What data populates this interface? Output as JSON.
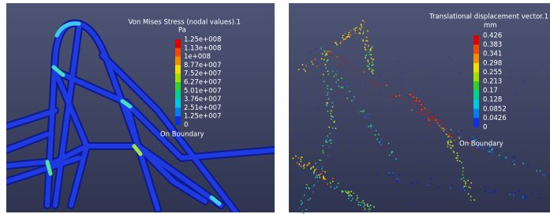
{
  "panels": [
    {
      "legend": {
        "title": "Von Mises Stress (nodal values).1",
        "unit": "Pa",
        "labels": [
          "1.25e+008",
          "1.13e+008",
          "1e+008",
          "8.77e+007",
          "7.52e+007",
          "6.27e+007",
          "5.01e+007",
          "3.76e+007",
          "2.51e+007",
          "1.25e+007",
          "0"
        ],
        "footer": "On Boundary"
      }
    },
    {
      "legend": {
        "title": "Translational displacement vector.1",
        "unit": "mm",
        "labels": [
          "0.426",
          "0.383",
          "0.341",
          "0.298",
          "0.255",
          "0.213",
          "0.17",
          "0.128",
          "0.0852",
          "0.0426",
          "0"
        ],
        "footer": "On Boundary"
      }
    }
  ]
}
